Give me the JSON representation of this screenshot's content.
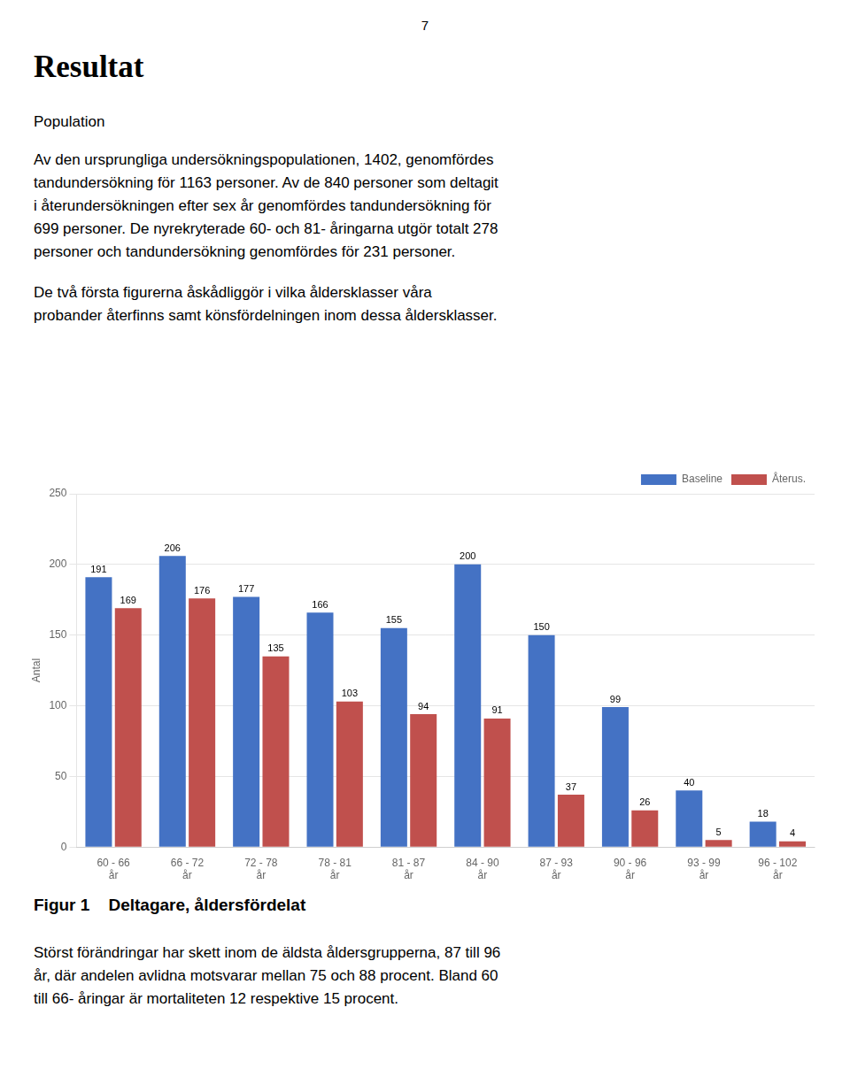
{
  "page_number": "7",
  "heading": "Resultat",
  "subheading": "Population",
  "paragraphs_before": [
    [
      "Av den ursprungliga undersökningspopulationen, 1402, genomfördes",
      "tandundersökning för 1163 personer. Av de 840 personer som deltagit",
      "i återundersökningen efter sex år genomfördes tandundersökning för",
      "699 personer. De nyrekryterade 60- och 81- åringarna utgör totalt 278",
      "personer och tandundersökning genomfördes för 231 personer."
    ],
    [
      "De två första figurerna åskådliggör i vilka åldersklasser våra",
      "probander återfinns samt könsfördelningen inom dessa åldersklasser."
    ]
  ],
  "figure_caption": "Figur 1    Deltagare, åldersfördelat",
  "paragraphs_after": [
    [
      "Störst förändringar har skett inom de äldsta åldersgrupperna, 87 till 96",
      "år, där andelen avlidna motsvarar mellan 75 och 88 procent. Bland 60",
      "till 66- åringar är mortaliteten 12 respektive 15 procent."
    ]
  ],
  "chart_data": {
    "type": "bar",
    "ylabel": "Antal",
    "categories": [
      "60 - 66\når",
      "66 - 72\når",
      "72 - 78\når",
      "78 - 81\når",
      "81 - 87\når",
      "84 - 90\når",
      "87 - 93\når",
      "90 - 96\når",
      "93 - 99\når",
      "96 - 102\når"
    ],
    "series": [
      {
        "name": "Baseline",
        "color": "#4472C4",
        "values": [
          191,
          206,
          177,
          166,
          155,
          200,
          150,
          99,
          40,
          18
        ]
      },
      {
        "name": "Återus.",
        "color": "#C0504D",
        "values": [
          169,
          176,
          135,
          103,
          94,
          91,
          37,
          26,
          5,
          4
        ]
      }
    ],
    "ylim": [
      0,
      250
    ],
    "yticks": [
      0,
      50,
      100,
      150,
      200,
      250
    ],
    "grid": true,
    "legend": "upper right",
    "data_labels": true
  }
}
